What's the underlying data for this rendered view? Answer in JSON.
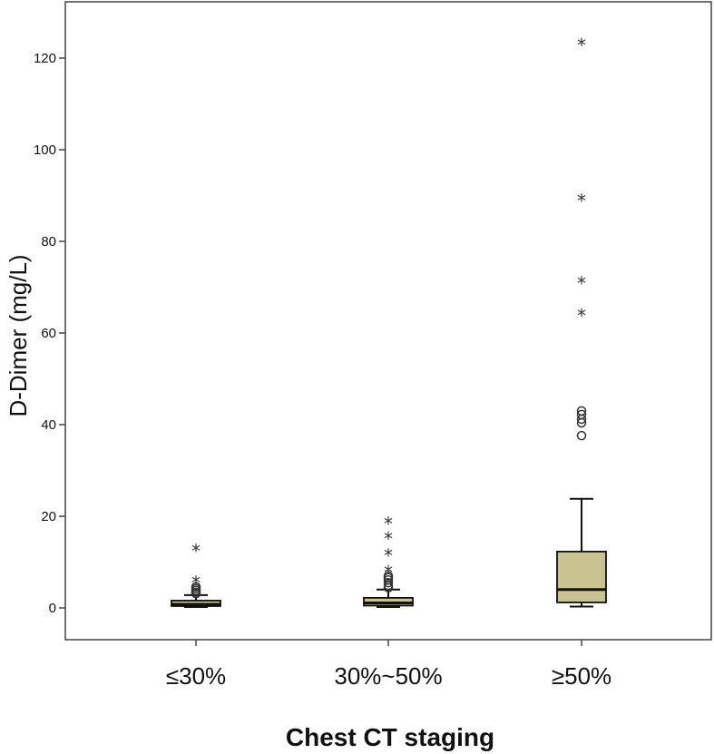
{
  "chart_data": {
    "type": "boxplot",
    "title": "",
    "xlabel": "Chest CT staging",
    "ylabel": "D-Dimer (mg/L)",
    "ylim": [
      -7,
      131
    ],
    "yticks": [
      0,
      20,
      40,
      60,
      80,
      100,
      120
    ],
    "ytick_labels": [
      "0",
      "20",
      "40",
      "60",
      "80",
      "100",
      "120"
    ],
    "grid": false,
    "legend": "none",
    "box_color": "#c8c391",
    "categories": [
      "≤30%",
      "30%~50%",
      "≥50%"
    ],
    "boxes": [
      {
        "category": "≤30%",
        "whisker_low": 0.2,
        "q1": 0.4,
        "median": 0.8,
        "q3": 1.6,
        "whisker_high": 2.8,
        "outliers": [
          3.1,
          3.4,
          3.8,
          4.2,
          4.6
        ],
        "extremes": [
          5.6,
          12.6
        ]
      },
      {
        "category": "30%~50%",
        "whisker_low": 0.2,
        "q1": 0.5,
        "median": 1.1,
        "q3": 2.2,
        "whisker_high": 4.0,
        "outliers": [
          4.4,
          4.9,
          5.5,
          6.1,
          6.6,
          7.0
        ],
        "extremes": [
          7.9,
          11.6,
          15.2,
          18.5
        ]
      },
      {
        "category": "≥50%",
        "whisker_low": 0.3,
        "q1": 1.2,
        "median": 4.0,
        "q3": 12.3,
        "whisker_high": 23.8,
        "outliers": [
          37.6,
          40.4,
          41.2,
          42.2,
          43.0
        ],
        "extremes": [
          64.0,
          71.0,
          89.0,
          123.0
        ]
      }
    ]
  }
}
